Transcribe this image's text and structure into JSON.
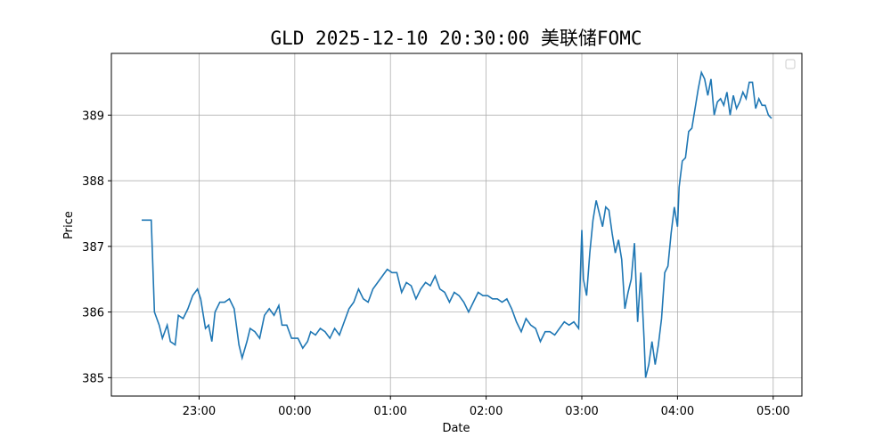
{
  "chart_data": {
    "type": "line",
    "title": "GLD 2025-12-10 20:30:00 美联储FOMC",
    "x_label": "Date",
    "y_label": "Price",
    "xlim": [
      "22:05",
      "05:18"
    ],
    "ylim": [
      384.72,
      389.94
    ],
    "xticks": [
      "23:00",
      "00:00",
      "01:00",
      "02:00",
      "03:00",
      "04:00",
      "05:00"
    ],
    "yticks": [
      385,
      386,
      387,
      388,
      389
    ],
    "grid": true,
    "x": [
      "22:24",
      "22:30",
      "22:32",
      "22:35",
      "22:37",
      "22:40",
      "22:42",
      "22:45",
      "22:47",
      "22:50",
      "22:53",
      "22:56",
      "22:59",
      "23:01",
      "23:04",
      "23:06",
      "23:08",
      "23:10",
      "23:13",
      "23:16",
      "23:19",
      "23:22",
      "23:25",
      "23:27",
      "23:30",
      "23:32",
      "23:35",
      "23:38",
      "23:41",
      "23:44",
      "23:47",
      "23:50",
      "23:52",
      "23:55",
      "23:58",
      "00:02",
      "00:05",
      "00:08",
      "00:10",
      "00:13",
      "00:16",
      "00:19",
      "00:22",
      "00:25",
      "00:28",
      "00:31",
      "00:34",
      "00:37",
      "00:40",
      "00:43",
      "00:46",
      "00:49",
      "00:52",
      "00:55",
      "00:58",
      "01:01",
      "01:04",
      "01:07",
      "01:10",
      "01:13",
      "01:16",
      "01:19",
      "01:22",
      "01:25",
      "01:28",
      "01:31",
      "01:34",
      "01:37",
      "01:40",
      "01:43",
      "01:46",
      "01:49",
      "01:52",
      "01:55",
      "01:58",
      "02:01",
      "02:04",
      "02:07",
      "02:10",
      "02:13",
      "02:16",
      "02:19",
      "02:22",
      "02:25",
      "02:28",
      "02:31",
      "02:34",
      "02:37",
      "02:40",
      "02:43",
      "02:46",
      "02:49",
      "02:52",
      "02:55",
      "02:58",
      "03:00",
      "03:01",
      "03:03",
      "03:05",
      "03:07",
      "03:09",
      "03:11",
      "03:13",
      "03:15",
      "03:17",
      "03:19",
      "03:21",
      "03:23",
      "03:25",
      "03:27",
      "03:29",
      "03:31",
      "03:33",
      "03:35",
      "03:37",
      "03:39",
      "03:40",
      "03:42",
      "03:44",
      "03:46",
      "03:48",
      "03:50",
      "03:52",
      "03:54",
      "03:56",
      "03:58",
      "04:00",
      "04:01",
      "04:03",
      "04:05",
      "04:07",
      "04:09",
      "04:11",
      "04:13",
      "04:15",
      "04:17",
      "04:19",
      "04:21",
      "04:23",
      "04:25",
      "04:27",
      "04:29",
      "04:31",
      "04:33",
      "04:35",
      "04:37",
      "04:39",
      "04:41",
      "04:43",
      "04:45",
      "04:47",
      "04:49",
      "04:51",
      "04:53",
      "04:55",
      "04:57",
      "04:59"
    ],
    "series": [
      {
        "color": "#1f77b4",
        "values": [
          387.4,
          387.4,
          386.0,
          385.8,
          385.6,
          385.8,
          385.55,
          385.5,
          385.95,
          385.9,
          386.05,
          386.25,
          386.35,
          386.2,
          385.75,
          385.8,
          385.55,
          386.0,
          386.15,
          386.15,
          386.2,
          386.05,
          385.5,
          385.3,
          385.55,
          385.75,
          385.7,
          385.6,
          385.95,
          386.05,
          385.95,
          386.1,
          385.8,
          385.8,
          385.6,
          385.6,
          385.45,
          385.55,
          385.7,
          385.65,
          385.75,
          385.7,
          385.6,
          385.75,
          385.65,
          385.85,
          386.05,
          386.15,
          386.35,
          386.2,
          386.15,
          386.35,
          386.45,
          386.55,
          386.65,
          386.6,
          386.6,
          386.3,
          386.45,
          386.4,
          386.2,
          386.35,
          386.45,
          386.4,
          386.55,
          386.35,
          386.3,
          386.15,
          386.3,
          386.25,
          386.15,
          386.0,
          386.15,
          386.3,
          386.25,
          386.25,
          386.2,
          386.2,
          386.15,
          386.2,
          386.05,
          385.85,
          385.7,
          385.9,
          385.8,
          385.75,
          385.55,
          385.7,
          385.7,
          385.65,
          385.75,
          385.85,
          385.8,
          385.85,
          385.75,
          387.25,
          386.5,
          386.25,
          386.9,
          387.4,
          387.7,
          387.5,
          387.3,
          387.6,
          387.55,
          387.2,
          386.9,
          387.1,
          386.8,
          386.05,
          386.3,
          386.5,
          387.05,
          385.85,
          386.6,
          385.6,
          385.0,
          385.2,
          385.55,
          385.2,
          385.5,
          385.9,
          386.6,
          386.7,
          387.2,
          387.6,
          387.3,
          387.9,
          388.3,
          388.35,
          388.75,
          388.8,
          389.1,
          389.4,
          389.65,
          389.55,
          389.3,
          389.55,
          389.0,
          389.2,
          389.25,
          389.15,
          389.35,
          389.0,
          389.3,
          389.1,
          389.2,
          389.35,
          389.25,
          389.5,
          389.5,
          389.1,
          389.25,
          389.15,
          389.15,
          389.0,
          388.95
        ]
      }
    ]
  }
}
